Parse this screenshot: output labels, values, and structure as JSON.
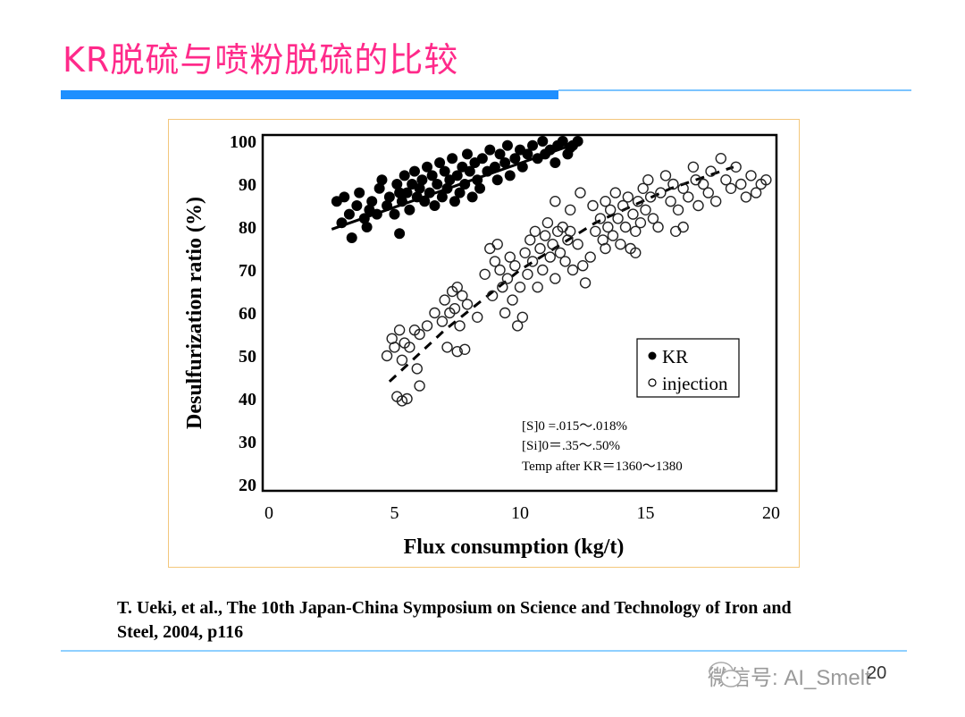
{
  "slide": {
    "title": "KR脱硫与喷粉脱硫的比较",
    "citation_line1": "T. Ueki, et al., The 10th Japan-China Symposium on Science and Technology of Iron and",
    "citation_line2": "Steel, 2004, p116",
    "watermark": "微信号: AI_Smelt",
    "watermark_icon": "wechat-icon",
    "page_number": "20",
    "colors": {
      "title": "#ff2a8a",
      "accent_bar": "#1e8fff",
      "chart_border": "#f3c77c"
    }
  },
  "chart_data": {
    "type": "scatter",
    "xlabel": "Flux consumption (kg/t)",
    "ylabel": "Desulfurization ratio (%)",
    "xlim": [
      0,
      20
    ],
    "ylim": [
      20,
      100
    ],
    "xticks": [
      "0",
      "5",
      "10",
      "15",
      "20"
    ],
    "yticks": [
      "20",
      "30",
      "40",
      "50",
      "60",
      "70",
      "80",
      "90",
      "100"
    ],
    "grid": false,
    "legend_placement": "center-right",
    "annotations": [
      "[S]0 =.015～.018%",
      "[Si]0＝.35～.50%",
      "Temp after KR＝1360～1380"
    ],
    "series": [
      {
        "name": "KR",
        "marker": "filled-circle",
        "trend": "solid",
        "trend_line": [
          [
            2.5,
            79.5
          ],
          [
            12.5,
            100
          ]
        ],
        "points": [
          [
            2.7,
            86
          ],
          [
            3.0,
            87
          ],
          [
            3.2,
            83
          ],
          [
            3.3,
            77.5
          ],
          [
            3.5,
            85
          ],
          [
            3.6,
            88
          ],
          [
            3.8,
            82
          ],
          [
            4.0,
            84
          ],
          [
            4.1,
            86
          ],
          [
            4.3,
            83
          ],
          [
            4.4,
            89
          ],
          [
            4.5,
            91
          ],
          [
            4.7,
            85
          ],
          [
            4.8,
            87
          ],
          [
            5.0,
            83
          ],
          [
            5.1,
            90
          ],
          [
            5.2,
            78.5
          ],
          [
            5.3,
            86
          ],
          [
            5.4,
            92
          ],
          [
            5.5,
            88
          ],
          [
            5.6,
            84
          ],
          [
            5.7,
            90
          ],
          [
            5.8,
            93
          ],
          [
            5.9,
            87
          ],
          [
            6.0,
            89
          ],
          [
            6.1,
            91
          ],
          [
            6.2,
            86
          ],
          [
            6.3,
            94
          ],
          [
            6.4,
            88
          ],
          [
            6.5,
            92
          ],
          [
            6.6,
            85
          ],
          [
            6.7,
            90
          ],
          [
            6.8,
            95
          ],
          [
            6.9,
            87
          ],
          [
            7.0,
            93
          ],
          [
            7.1,
            89
          ],
          [
            7.2,
            91
          ],
          [
            7.3,
            96
          ],
          [
            7.4,
            86
          ],
          [
            7.5,
            92
          ],
          [
            7.6,
            88
          ],
          [
            7.7,
            94
          ],
          [
            7.8,
            90
          ],
          [
            7.9,
            97
          ],
          [
            8.0,
            93
          ],
          [
            8.1,
            87
          ],
          [
            8.2,
            95
          ],
          [
            8.3,
            91
          ],
          [
            8.4,
            89
          ],
          [
            8.5,
            96
          ],
          [
            8.7,
            93
          ],
          [
            8.8,
            98
          ],
          [
            9.0,
            94
          ],
          [
            9.1,
            91
          ],
          [
            9.2,
            97
          ],
          [
            9.4,
            95
          ],
          [
            9.5,
            99
          ],
          [
            9.6,
            92
          ],
          [
            9.8,
            96
          ],
          [
            10.0,
            98
          ],
          [
            10.1,
            94
          ],
          [
            10.3,
            97
          ],
          [
            10.5,
            99
          ],
          [
            10.7,
            96
          ],
          [
            10.9,
            100
          ],
          [
            11.0,
            97
          ],
          [
            11.2,
            98
          ],
          [
            11.4,
            95
          ],
          [
            11.5,
            99
          ],
          [
            11.7,
            100
          ],
          [
            11.9,
            97
          ],
          [
            12.1,
            99
          ],
          [
            12.3,
            100
          ],
          [
            12.0,
            98.5
          ],
          [
            5.2,
            88
          ],
          [
            3.9,
            80
          ],
          [
            2.9,
            81
          ]
        ]
      },
      {
        "name": "injection",
        "marker": "open-circle",
        "trend": "dashed",
        "trend_line": [
          [
            4.8,
            44
          ],
          [
            7,
            56
          ],
          [
            10,
            70
          ],
          [
            13,
            81
          ],
          [
            16,
            89
          ],
          [
            18.5,
            94
          ]
        ],
        "points": [
          [
            4.7,
            50
          ],
          [
            4.9,
            54
          ],
          [
            5.0,
            52
          ],
          [
            5.1,
            40.5
          ],
          [
            5.2,
            56
          ],
          [
            5.3,
            49
          ],
          [
            5.3,
            39.5
          ],
          [
            5.4,
            53
          ],
          [
            5.5,
            40
          ],
          [
            5.6,
            52
          ],
          [
            5.8,
            56
          ],
          [
            5.9,
            47
          ],
          [
            6.0,
            43
          ],
          [
            6.0,
            55
          ],
          [
            6.3,
            57
          ],
          [
            6.6,
            60
          ],
          [
            6.9,
            58
          ],
          [
            7.0,
            63
          ],
          [
            7.1,
            52
          ],
          [
            7.2,
            60
          ],
          [
            7.3,
            65
          ],
          [
            7.4,
            61
          ],
          [
            7.5,
            51
          ],
          [
            7.5,
            66
          ],
          [
            7.6,
            57
          ],
          [
            7.7,
            64
          ],
          [
            7.8,
            51.5
          ],
          [
            7.9,
            62
          ],
          [
            8.3,
            59
          ],
          [
            8.6,
            69
          ],
          [
            8.8,
            75
          ],
          [
            8.9,
            64
          ],
          [
            9.0,
            72
          ],
          [
            9.1,
            76
          ],
          [
            9.2,
            70
          ],
          [
            9.3,
            66
          ],
          [
            9.4,
            60
          ],
          [
            9.5,
            68
          ],
          [
            9.6,
            73
          ],
          [
            9.7,
            63
          ],
          [
            9.8,
            71
          ],
          [
            9.9,
            57
          ],
          [
            10.0,
            66
          ],
          [
            10.1,
            59
          ],
          [
            10.2,
            74
          ],
          [
            10.3,
            69
          ],
          [
            10.4,
            77
          ],
          [
            10.5,
            72
          ],
          [
            10.6,
            79
          ],
          [
            10.7,
            66
          ],
          [
            10.8,
            75
          ],
          [
            10.9,
            70
          ],
          [
            11.0,
            78
          ],
          [
            11.1,
            81
          ],
          [
            11.2,
            73
          ],
          [
            11.3,
            76
          ],
          [
            11.4,
            68
          ],
          [
            11.5,
            79
          ],
          [
            11.6,
            74
          ],
          [
            11.7,
            80
          ],
          [
            11.8,
            72
          ],
          [
            11.9,
            77
          ],
          [
            12.0,
            79
          ],
          [
            12.1,
            70
          ],
          [
            12.3,
            76
          ],
          [
            12.5,
            71
          ],
          [
            12.6,
            67
          ],
          [
            12.8,
            73
          ],
          [
            12.4,
            88
          ],
          [
            12.9,
            85
          ],
          [
            13.0,
            79
          ],
          [
            13.2,
            82
          ],
          [
            13.3,
            77
          ],
          [
            13.4,
            86
          ],
          [
            13.5,
            80
          ],
          [
            13.6,
            84
          ],
          [
            13.7,
            78
          ],
          [
            13.8,
            88
          ],
          [
            13.9,
            82
          ],
          [
            14.0,
            76
          ],
          [
            14.1,
            85
          ],
          [
            14.2,
            80
          ],
          [
            14.3,
            87
          ],
          [
            14.4,
            75
          ],
          [
            14.5,
            83
          ],
          [
            14.6,
            79
          ],
          [
            14.7,
            86
          ],
          [
            14.8,
            81
          ],
          [
            14.9,
            89
          ],
          [
            15.0,
            84
          ],
          [
            15.1,
            91
          ],
          [
            15.2,
            87
          ],
          [
            15.3,
            82
          ],
          [
            15.5,
            80
          ],
          [
            15.6,
            88
          ],
          [
            15.8,
            92
          ],
          [
            16.0,
            86
          ],
          [
            16.1,
            90
          ],
          [
            16.3,
            84
          ],
          [
            16.5,
            89
          ],
          [
            16.7,
            87
          ],
          [
            16.9,
            94
          ],
          [
            17.0,
            91
          ],
          [
            17.1,
            85
          ],
          [
            17.3,
            90
          ],
          [
            17.5,
            88
          ],
          [
            17.6,
            93
          ],
          [
            17.8,
            86
          ],
          [
            18.0,
            96
          ],
          [
            18.2,
            91
          ],
          [
            18.4,
            89
          ],
          [
            18.6,
            94
          ],
          [
            18.8,
            90
          ],
          [
            19.0,
            87
          ],
          [
            19.2,
            92
          ],
          [
            19.4,
            88
          ],
          [
            19.6,
            90
          ],
          [
            19.8,
            91
          ],
          [
            16.2,
            79
          ],
          [
            16.5,
            80
          ],
          [
            14.6,
            74
          ],
          [
            13.4,
            75
          ],
          [
            12.0,
            84
          ],
          [
            11.4,
            86
          ]
        ]
      }
    ]
  }
}
